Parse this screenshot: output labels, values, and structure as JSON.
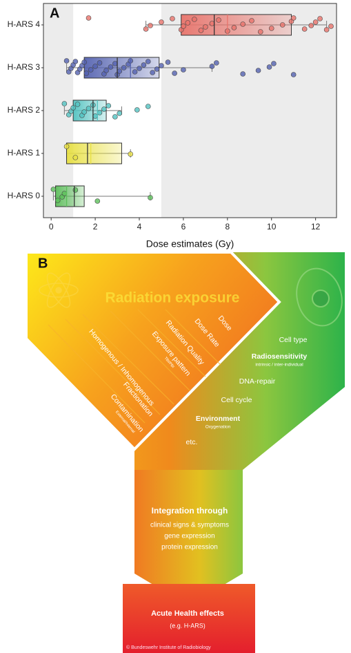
{
  "chart_data": {
    "type": "box",
    "panel_label": "A",
    "xlabel": "Dose estimates (Gy)",
    "xlim": [
      -0.35,
      12.95
    ],
    "xticks": [
      0,
      2,
      4,
      6,
      8,
      10,
      12
    ],
    "highlight_range": [
      1,
      5
    ],
    "categories": [
      "H-ARS 4",
      "H-ARS 3",
      "H-ARS 2",
      "H-ARS 1",
      "H-ARS 0"
    ],
    "boxes": [
      {
        "color": "#e8736b",
        "whisker_low": 4.3,
        "q1": 5.9,
        "median": 7.4,
        "mean": 8.0,
        "q3": 10.9,
        "whisker_high": 12.5,
        "points": [
          1.7,
          4.3,
          4.5,
          5.0,
          5.5,
          5.9,
          6.0,
          6.2,
          6.5,
          6.8,
          7.0,
          7.3,
          7.6,
          8.0,
          8.3,
          8.7,
          9.1,
          9.5,
          10.0,
          10.5,
          10.9,
          11.0,
          11.5,
          11.8,
          12.0,
          12.2,
          12.5,
          12.7
        ]
      },
      {
        "color": "#5462b0",
        "whisker_low": 0.7,
        "q1": 1.5,
        "median": 3.0,
        "mean": 3.6,
        "q3": 4.9,
        "whisker_high": 7.3,
        "points": [
          0.7,
          0.8,
          0.9,
          1.0,
          1.1,
          1.2,
          1.3,
          1.4,
          1.5,
          1.6,
          1.8,
          2.0,
          2.2,
          2.4,
          2.5,
          2.7,
          2.9,
          3.0,
          3.1,
          3.3,
          3.5,
          3.6,
          3.8,
          4.0,
          4.2,
          4.4,
          4.6,
          4.8,
          5.0,
          5.3,
          5.6,
          6.0,
          7.3,
          7.5,
          8.7,
          9.4,
          9.9,
          10.1,
          11.0
        ]
      },
      {
        "color": "#52c2c0",
        "whisker_low": 0.6,
        "q1": 1.0,
        "median": 1.9,
        "mean": 2.1,
        "q3": 2.5,
        "whisker_high": 3.2,
        "points": [
          0.6,
          0.8,
          0.9,
          1.0,
          1.2,
          1.4,
          1.5,
          1.7,
          1.9,
          2.0,
          2.2,
          2.4,
          2.6,
          2.9,
          3.1,
          3.9,
          4.4
        ]
      },
      {
        "color": "#e8e043",
        "whisker_low": 0.7,
        "q1": 0.7,
        "median": 1.65,
        "mean": 1.8,
        "q3": 3.2,
        "whisker_high": 3.6,
        "points": [
          0.7,
          1.1,
          3.6
        ]
      },
      {
        "color": "#5cbf5a",
        "whisker_low": 0.1,
        "q1": 0.2,
        "median": 1.05,
        "mean": 0.7,
        "q3": 1.5,
        "whisker_high": 4.5,
        "points": [
          0.1,
          0.3,
          0.5,
          0.6,
          1.1,
          2.1,
          4.5
        ]
      }
    ]
  },
  "diagram": {
    "panel_label": "B",
    "title": "Radiation exposure",
    "factors": [
      {
        "label": "Dose"
      },
      {
        "label": "Dose Rate"
      },
      {
        "label": "Radiation Quality"
      },
      {
        "label": "Exposure pattern",
        "sublabel": "TBI/PBI"
      },
      {
        "label": "Homogenous / Inhomogenous"
      },
      {
        "label": "Fractionation"
      },
      {
        "label": "Contamination",
        "sublabel": "External/Internal"
      }
    ],
    "biology": [
      {
        "label": "Cell type"
      },
      {
        "label": "Radiosensitivity",
        "sublabel": "intrinsic / inter-individual"
      },
      {
        "label": "DNA-repair"
      },
      {
        "label": "Cell cycle"
      },
      {
        "label": "Environment",
        "sublabel": "Oxygenation"
      },
      {
        "label": "etc."
      }
    ],
    "integration": {
      "title": "Integration through",
      "items": [
        "clinical signs & symptoms",
        "gene expression",
        "protein expression"
      ]
    },
    "outcome": {
      "title": "Acute Health effects",
      "subtitle": "(e.g. H-ARS)"
    },
    "credit": "© Bundeswehr Institute of Radiobiology"
  }
}
